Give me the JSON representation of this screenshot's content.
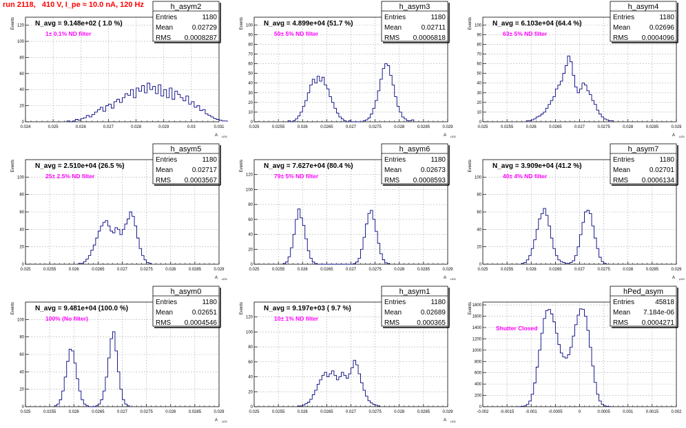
{
  "canvas_title": "run 2118,   410 V, I_pe ≈ 10.0 nA, 120 Hz",
  "colors": {
    "title": "#ff0000",
    "annotation": "#ff00ff",
    "histogram": "#000080",
    "grid": "#b0b0b0"
  },
  "stats_labels": {
    "entries": "Entries",
    "mean": "Mean",
    "rms": "RMS"
  },
  "ylabel": "Events",
  "chart_data": [
    {
      "type": "histogram",
      "name": "h_asym2",
      "n_avg_label": "N_avg = 9.148e+02 ( 1.0 %)",
      "filter_label": "1± 0.1% ND filter",
      "entries": "1180",
      "mean": "0.02729",
      "rms": "0.0008287",
      "xlim": [
        0.024,
        0.031
      ],
      "ylim": [
        0,
        130
      ],
      "xticks": [
        0.024,
        0.025,
        0.026,
        0.027,
        0.028,
        0.029,
        0.03,
        0.031
      ],
      "xticklabels": [
        "0.024",
        "0.025",
        "0.026",
        "0.027",
        "0.028",
        "0.029",
        "0.03",
        "0.031"
      ],
      "yticks": [
        0,
        20,
        40,
        60,
        80,
        100,
        120
      ],
      "xlabel": "A",
      "bins_x0": 0.0255,
      "bin_width": 0.0001,
      "values": [
        1,
        0,
        1,
        3,
        2,
        4,
        5,
        8,
        6,
        9,
        12,
        15,
        18,
        13,
        20,
        22,
        17,
        25,
        28,
        24,
        30,
        35,
        33,
        40,
        30,
        42,
        38,
        45,
        36,
        48,
        40,
        44,
        35,
        46,
        32,
        40,
        30,
        42,
        28,
        38,
        34,
        30,
        26,
        32,
        22,
        25,
        18,
        20,
        14,
        15,
        10,
        8,
        6,
        4,
        3,
        2,
        1,
        1
      ]
    },
    {
      "type": "histogram",
      "name": "h_asym3",
      "n_avg_label": "N_avg = 4.899e+04 (51.7 %)",
      "filter_label": "50± 5% ND filter",
      "entries": "1180",
      "mean": "0.02711",
      "rms": "0.0006818",
      "xlim": [
        0.025,
        0.029
      ],
      "ylim": [
        0,
        108
      ],
      "xticks": [
        0.025,
        0.0255,
        0.026,
        0.0265,
        0.027,
        0.0275,
        0.028,
        0.0285,
        0.029
      ],
      "xticklabels": [
        "0.025",
        "0.0255",
        "0.026",
        "0.0265",
        "0.027",
        "0.0275",
        "0.028",
        "0.0285",
        "0.029"
      ],
      "yticks": [
        0,
        10,
        20,
        30,
        40,
        50,
        60,
        70,
        80,
        90,
        100
      ],
      "xlabel": "A",
      "bins_x0": 0.0257,
      "bin_width": 5e-05,
      "values": [
        1,
        0,
        1,
        3,
        6,
        10,
        16,
        22,
        30,
        38,
        44,
        40,
        47,
        42,
        46,
        38,
        34,
        26,
        20,
        14,
        9,
        5,
        3,
        1,
        0,
        1,
        0,
        0,
        0,
        0,
        0,
        1,
        2,
        4,
        8,
        14,
        22,
        32,
        44,
        55,
        60,
        58,
        48,
        38,
        26,
        16,
        10,
        5,
        3,
        1,
        1,
        2
      ]
    },
    {
      "type": "histogram",
      "name": "h_asym4",
      "n_avg_label": "N_avg = 6.103e+04 (64.4 %)",
      "filter_label": "63± 5% ND filter",
      "entries": "1180",
      "mean": "0.02696",
      "rms": "0.0004096",
      "xlim": [
        0.025,
        0.029
      ],
      "ylim": [
        0,
        108
      ],
      "xticks": [
        0.025,
        0.0255,
        0.026,
        0.0265,
        0.027,
        0.0275,
        0.028,
        0.0285,
        0.029
      ],
      "xticklabels": [
        "0.025",
        "0.0255",
        "0.026",
        "0.0265",
        "0.027",
        "0.0275",
        "0.028",
        "0.0285",
        "0.029"
      ],
      "yticks": [
        0,
        10,
        20,
        30,
        40,
        50,
        60,
        70,
        80,
        90,
        100
      ],
      "xlabel": "A",
      "bins_x0": 0.0259,
      "bin_width": 5e-05,
      "values": [
        1,
        1,
        2,
        3,
        5,
        6,
        8,
        10,
        14,
        18,
        22,
        26,
        34,
        38,
        42,
        50,
        58,
        68,
        62,
        48,
        36,
        30,
        34,
        40,
        38,
        32,
        28,
        22,
        18,
        12,
        8,
        5,
        3,
        2,
        1,
        1
      ]
    },
    {
      "type": "histogram",
      "name": "h_asym5",
      "n_avg_label": "N_avg = 2.510e+04 (26.5 %)",
      "filter_label": "25± 2.5% ND filter",
      "entries": "1180",
      "mean": "0.02717",
      "rms": "0.0003567",
      "xlim": [
        0.025,
        0.029
      ],
      "ylim": [
        0,
        120
      ],
      "xticks": [
        0.025,
        0.0255,
        0.026,
        0.0265,
        0.027,
        0.0275,
        0.028,
        0.0285,
        0.029
      ],
      "xticklabels": [
        "0.025",
        "0.0255",
        "0.026",
        "0.0265",
        "0.027",
        "0.0275",
        "0.028",
        "0.0285",
        "0.029"
      ],
      "yticks": [
        0,
        20,
        40,
        60,
        80,
        100
      ],
      "xlabel": "A",
      "bins_x0": 0.0261,
      "bin_width": 5e-05,
      "values": [
        1,
        1,
        3,
        6,
        10,
        16,
        22,
        30,
        38,
        44,
        48,
        50,
        44,
        38,
        36,
        42,
        40,
        34,
        40,
        46,
        52,
        60,
        55,
        44,
        30,
        18,
        10,
        5,
        2,
        1
      ]
    },
    {
      "type": "histogram",
      "name": "h_asym6",
      "n_avg_label": "N_avg = 7.627e+04 (80.4 %)",
      "filter_label": "79± 5% ND filter",
      "entries": "1180",
      "mean": "0.02673",
      "rms": "0.0008593",
      "xlim": [
        0.025,
        0.029
      ],
      "ylim": [
        0,
        140
      ],
      "xticks": [
        0.025,
        0.0255,
        0.026,
        0.0265,
        0.027,
        0.0275,
        0.028,
        0.0285,
        0.029
      ],
      "xticklabels": [
        "0.025",
        "0.0255",
        "0.026",
        "0.0265",
        "0.027",
        "0.0275",
        "0.028",
        "0.0285",
        "0.029"
      ],
      "yticks": [
        0,
        20,
        40,
        60,
        80,
        100,
        120
      ],
      "xlabel": "A",
      "bins_x0": 0.0256,
      "bin_width": 5e-05,
      "values": [
        1,
        3,
        10,
        22,
        40,
        60,
        74,
        62,
        52,
        34,
        18,
        8,
        3,
        1,
        0,
        0,
        0,
        0,
        0,
        0,
        0,
        0,
        0,
        0,
        0,
        0,
        0,
        0,
        0,
        1,
        3,
        8,
        20,
        36,
        54,
        68,
        72,
        60,
        44,
        28,
        14,
        6,
        2,
        1
      ]
    },
    {
      "type": "histogram",
      "name": "h_asym7",
      "n_avg_label": "N_avg = 3.909e+04 (41.2 %)",
      "filter_label": "40± 4% ND filter",
      "entries": "1180",
      "mean": "0.02701",
      "rms": "0.0006134",
      "xlim": [
        0.025,
        0.029
      ],
      "ylim": [
        0,
        120
      ],
      "xticks": [
        0.025,
        0.0255,
        0.026,
        0.0265,
        0.027,
        0.0275,
        0.028,
        0.0285,
        0.029
      ],
      "xticklabels": [
        "0.025",
        "0.0255",
        "0.026",
        "0.0265",
        "0.027",
        "0.0275",
        "0.028",
        "0.0285",
        "0.029"
      ],
      "yticks": [
        0,
        20,
        40,
        60,
        80,
        100
      ],
      "xlabel": "A",
      "bins_x0": 0.0258,
      "bin_width": 5e-05,
      "values": [
        1,
        2,
        5,
        10,
        18,
        28,
        40,
        52,
        58,
        64,
        56,
        44,
        30,
        18,
        10,
        5,
        3,
        2,
        1,
        1,
        2,
        4,
        10,
        20,
        34,
        48,
        60,
        62,
        58,
        44,
        30,
        18,
        8,
        3,
        1
      ]
    },
    {
      "type": "histogram",
      "name": "h_asym0",
      "n_avg_label": "N_avg = 9.481e+04 (100.0 %)",
      "filter_label": "100% (No filter)",
      "entries": "1180",
      "mean": "0.02651",
      "rms": "0.0004546",
      "xlim": [
        0.025,
        0.029
      ],
      "ylim": [
        0,
        120
      ],
      "xticks": [
        0.025,
        0.0255,
        0.026,
        0.0265,
        0.027,
        0.0275,
        0.028,
        0.0285,
        0.029
      ],
      "xticklabels": [
        "0.025",
        "0.0255",
        "0.026",
        "0.0265",
        "0.027",
        "0.0275",
        "0.028",
        "0.0285",
        "0.029"
      ],
      "yticks": [
        0,
        20,
        40,
        60,
        80,
        100
      ],
      "xlabel": "A",
      "bins_x0": 0.0256,
      "bin_width": 5e-05,
      "values": [
        1,
        3,
        8,
        18,
        34,
        52,
        66,
        64,
        50,
        32,
        18,
        8,
        3,
        1,
        0,
        0,
        0,
        1,
        3,
        8,
        18,
        34,
        56,
        78,
        86,
        64,
        40,
        20,
        8,
        3,
        1
      ]
    },
    {
      "type": "histogram",
      "name": "h_asym1",
      "n_avg_label": "N_avg = 9.197e+03 ( 9.7 %)",
      "filter_label": "10± 1% ND filter",
      "entries": "1180",
      "mean": "0.02689",
      "rms": "0.000365",
      "xlim": [
        0.025,
        0.029
      ],
      "ylim": [
        0,
        140
      ],
      "xticks": [
        0.025,
        0.0255,
        0.026,
        0.0265,
        0.027,
        0.0275,
        0.028,
        0.0285,
        0.029
      ],
      "xticklabels": [
        "0.025",
        "0.0255",
        "0.026",
        "0.0265",
        "0.027",
        "0.0275",
        "0.028",
        "0.0285",
        "0.029"
      ],
      "yticks": [
        0,
        20,
        40,
        60,
        80,
        100,
        120
      ],
      "xlabel": "A",
      "bins_x0": 0.0259,
      "bin_width": 5e-05,
      "values": [
        1,
        1,
        2,
        4,
        6,
        10,
        16,
        22,
        30,
        36,
        42,
        46,
        40,
        44,
        48,
        42,
        36,
        40,
        46,
        42,
        38,
        44,
        52,
        62,
        56,
        44,
        32,
        22,
        14,
        8,
        5,
        3,
        2,
        1
      ]
    },
    {
      "type": "histogram",
      "name": "hPed_asym",
      "n_avg_label": "",
      "filter_label": "Shutter Closed",
      "entries": "45818",
      "mean": "7.184e-06",
      "rms": "0.0004271",
      "xlim": [
        -0.002,
        0.002
      ],
      "ylim": [
        0,
        1850
      ],
      "xticks": [
        -0.002,
        -0.0015,
        -0.001,
        -0.0005,
        0,
        0.0005,
        0.001,
        0.0015,
        0.002
      ],
      "xticklabels": [
        "-0.002",
        "-0.0015",
        "-0.001",
        "-0.0005",
        "0",
        "0.0005",
        "0.001",
        "0.0015",
        "0.002"
      ],
      "yticks": [
        0,
        200,
        400,
        600,
        800,
        1000,
        1200,
        1400,
        1600,
        1800
      ],
      "xlabel": "",
      "bins_x0": -0.00125,
      "bin_width": 5e-05,
      "values": [
        2,
        5,
        15,
        40,
        100,
        220,
        420,
        700,
        1000,
        1300,
        1560,
        1700,
        1720,
        1640,
        1500,
        1300,
        1100,
        950,
        880,
        860,
        920,
        1050,
        1250,
        1450,
        1620,
        1730,
        1720,
        1600,
        1350,
        1050,
        720,
        430,
        220,
        100,
        40,
        15,
        5,
        2
      ]
    }
  ]
}
